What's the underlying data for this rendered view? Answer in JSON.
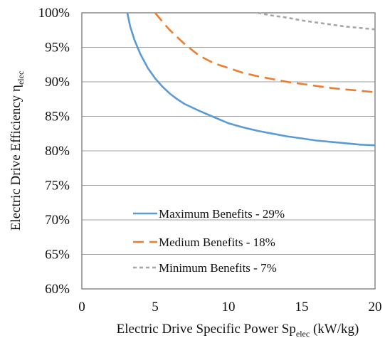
{
  "chart_data": {
    "type": "line",
    "xlabel": "Electric Drive Specific Power Sp",
    "xlabel_sub": "elec",
    "xlabel_unit": " (kW/kg)",
    "ylabel": "Electric Drive Efficiency η",
    "ylabel_sub": "elec",
    "xlim": [
      0,
      20
    ],
    "ylim": [
      0.6,
      1.0
    ],
    "xticks": [
      0,
      5,
      10,
      15,
      20
    ],
    "xtick_labels": [
      "0",
      "5",
      "10",
      "15",
      "20"
    ],
    "yticks": [
      0.6,
      0.65,
      0.7,
      0.75,
      0.8,
      0.85,
      0.9,
      0.95,
      1.0
    ],
    "ytick_labels": [
      "60%",
      "65%",
      "70%",
      "75%",
      "80%",
      "85%",
      "90%",
      "95%",
      "100%"
    ],
    "grid": "horizontal",
    "legend_position": "bottom-center",
    "series": [
      {
        "name": "Maximum Benefits - 29%",
        "color": "#5b9bd5",
        "style": "solid",
        "x": [
          3.1,
          3.3,
          3.6,
          4.0,
          4.5,
          5.0,
          5.5,
          6.0,
          6.5,
          7.0,
          8.0,
          9.0,
          10.0,
          11.0,
          12.0,
          13.0,
          14.0,
          15.0,
          16.0,
          17.0,
          18.0,
          19.0,
          20.0
        ],
        "y": [
          1.0,
          0.98,
          0.96,
          0.94,
          0.92,
          0.905,
          0.893,
          0.883,
          0.875,
          0.868,
          0.858,
          0.849,
          0.84,
          0.834,
          0.829,
          0.825,
          0.821,
          0.818,
          0.815,
          0.813,
          0.811,
          0.809,
          0.808
        ]
      },
      {
        "name": "Medium Benefits - 18%",
        "color": "#ed7d31",
        "style": "dashed",
        "x": [
          5.0,
          5.5,
          6.0,
          7.0,
          8.0,
          9.0,
          10.0,
          11.0,
          12.0,
          13.0,
          14.0,
          15.0,
          16.0,
          17.0,
          18.0,
          19.0,
          20.0
        ],
        "y": [
          1.0,
          0.987,
          0.975,
          0.955,
          0.938,
          0.927,
          0.92,
          0.913,
          0.908,
          0.904,
          0.9,
          0.897,
          0.894,
          0.891,
          0.889,
          0.887,
          0.885
        ]
      },
      {
        "name": "Minimum Benefits - 7%",
        "color": "#a6a6a6",
        "style": "dotted",
        "x": [
          12.0,
          13.0,
          14.0,
          15.0,
          16.0,
          17.0,
          18.0,
          19.0,
          20.0
        ],
        "y": [
          1.0,
          0.996,
          0.993,
          0.989,
          0.986,
          0.983,
          0.98,
          0.978,
          0.976
        ]
      }
    ]
  }
}
